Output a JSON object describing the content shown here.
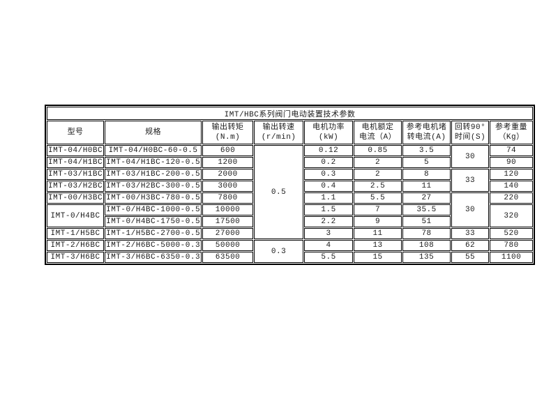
{
  "table": {
    "title": "IMT/HBC系列阀门电动装置技术参数",
    "columns": [
      {
        "l1": "型号",
        "l2": ""
      },
      {
        "l1": "规格",
        "l2": ""
      },
      {
        "l1": "输出转矩",
        "l2": "(N.m)"
      },
      {
        "l1": "输出转速",
        "l2": "(r/min)"
      },
      {
        "l1": "电机功率",
        "l2": "(kW)"
      },
      {
        "l1": "电机额定",
        "l2": "电流（A）"
      },
      {
        "l1": "参考电机堵",
        "l2": "转电流(A)"
      },
      {
        "l1": "回转90°",
        "l2": "时间(S)"
      },
      {
        "l1": "参考重量",
        "l2": "（Kg）"
      }
    ],
    "rows": [
      {
        "model": "IMT-04/H0BC",
        "spec": "IMT-04/H0BC-60-0.5",
        "torque": "600",
        "speed": "0.5",
        "power": "0.12",
        "current": "0.85",
        "locked": "3.5",
        "time": "30",
        "weight": "74"
      },
      {
        "model": "IMT-04/H1BC",
        "spec": "IMT-04/H1BC-120-0.5",
        "torque": "1200",
        "power": "0.2",
        "current": "2",
        "locked": "5",
        "weight": "90"
      },
      {
        "model": "IMT-03/H1BC",
        "spec": "IMT-03/H1BC-200-0.5",
        "torque": "2000",
        "power": "0.3",
        "current": "2",
        "locked": "8",
        "time": "33",
        "weight": "120"
      },
      {
        "model": "IMT-03/H2BC",
        "spec": "IMT-03/H2BC-300-0.5",
        "torque": "3000",
        "power": "0.4",
        "current": "2.5",
        "locked": "11",
        "weight": "140"
      },
      {
        "model": "IMT-00/H3BC",
        "spec": "IMT-00/H3BC-780-0.5",
        "torque": "7800",
        "power": "1.1",
        "current": "5.5",
        "locked": "27",
        "time": "30",
        "weight": "220"
      },
      {
        "model": "IMT-0/H4BC",
        "spec": "IMT-0/H4BC-1000-0.5",
        "torque": "10000",
        "power": "1.5",
        "current": "7",
        "locked": "35.5",
        "weight": "320"
      },
      {
        "spec": "IMT-0/H4BC-1750-0.5",
        "torque": "17500",
        "power": "2.2",
        "current": "9",
        "locked": "51"
      },
      {
        "model": "IMT-1/H5BC",
        "spec": "IMT-1/H5BC-2700-0.5",
        "torque": "27000",
        "power": "3",
        "current": "11",
        "locked": "78",
        "time": "33",
        "weight": "520"
      },
      {
        "model": "IMT-2/H6BC",
        "spec": "IMT-2/H6BC-5000-0.3",
        "torque": "50000",
        "speed": "0.3",
        "power": "4",
        "current": "13",
        "locked": "108",
        "time": "62",
        "weight": "780"
      },
      {
        "model": "IMT-3/H6BC",
        "spec": "IMT-3/H6BC-6350-0.3",
        "torque": "63500",
        "power": "5.5",
        "current": "15",
        "locked": "135",
        "time": "55",
        "weight": "1100"
      }
    ]
  }
}
